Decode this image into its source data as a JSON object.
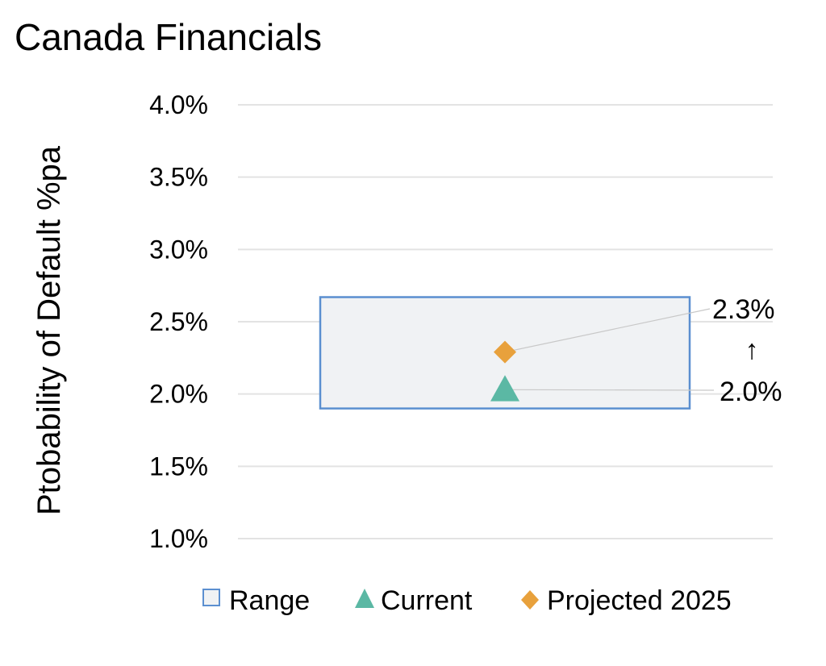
{
  "chart_data": {
    "type": "range",
    "title": "Canada Financials",
    "xlabel": "",
    "ylabel": "Ptobability of Default %pa",
    "ylim": [
      0.01,
      0.04
    ],
    "yticks": [
      {
        "value": 0.04,
        "label": "4.0%"
      },
      {
        "value": 0.035,
        "label": "3.5%"
      },
      {
        "value": 0.03,
        "label": "3.0%"
      },
      {
        "value": 0.025,
        "label": "2.5%"
      },
      {
        "value": 0.02,
        "label": "2.0%"
      },
      {
        "value": 0.015,
        "label": "1.5%"
      },
      {
        "value": 0.01,
        "label": "1.0%"
      }
    ],
    "grid": true,
    "legend_position": "bottom",
    "series": [
      {
        "name": "Range",
        "kind": "range",
        "low": 0.019,
        "high": 0.0267
      },
      {
        "name": "Current",
        "kind": "point",
        "marker": "triangle",
        "value": 0.0203,
        "label": "2.0%"
      },
      {
        "name": "Projected 2025",
        "kind": "point",
        "marker": "diamond",
        "value": 0.0229,
        "label": "2.3%"
      }
    ],
    "arrow": "↑",
    "colors": {
      "range_fill": "#f0f2f4",
      "range_border": "#5b8fd0",
      "current": "#5bb8a4",
      "projected": "#e8a13c",
      "grid": "#e3e3e3",
      "leader": "#c8c8c8"
    }
  }
}
